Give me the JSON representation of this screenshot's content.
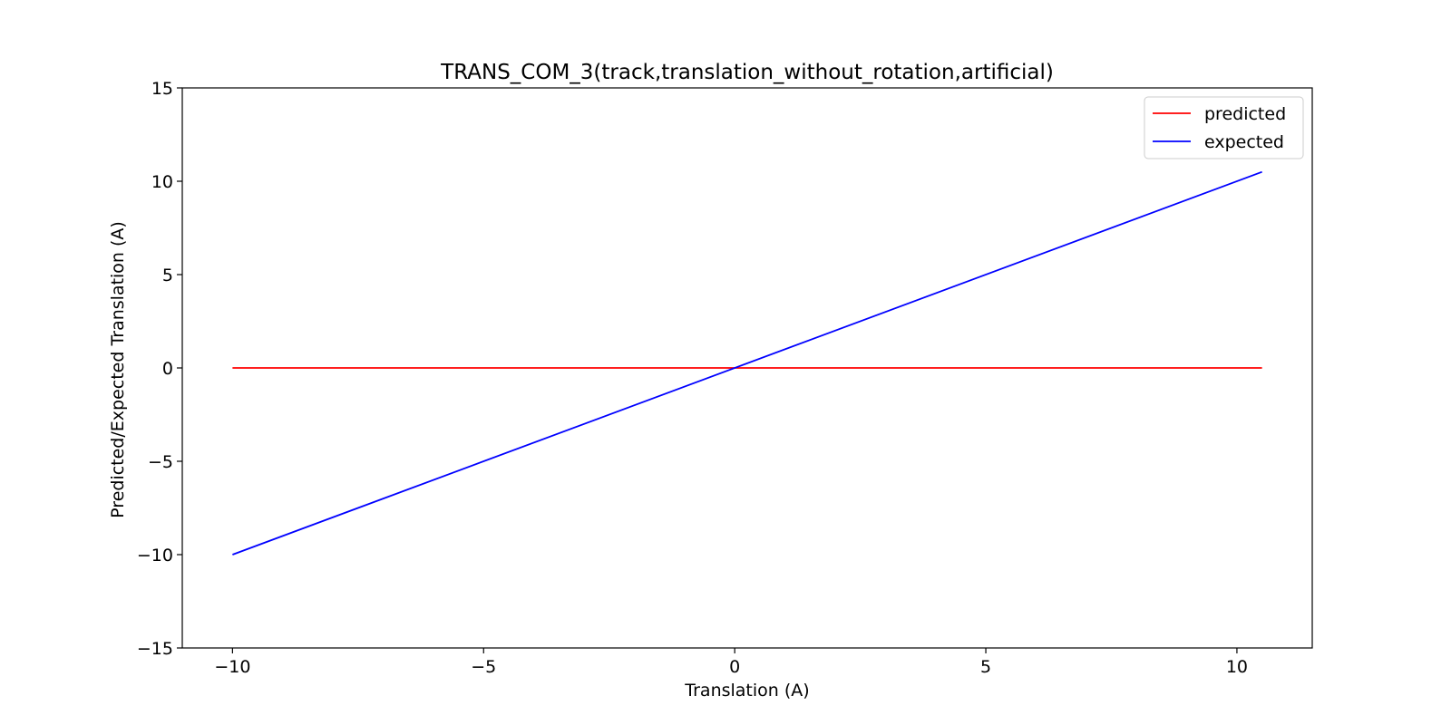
{
  "chart_data": {
    "type": "line",
    "title": "TRANS_COM_3(track,translation_without_rotation,artificial)",
    "xlabel": "Translation (A)",
    "ylabel": "Predicted/Expected Translation (A)",
    "xlim": [
      -11,
      11.5
    ],
    "ylim": [
      -15,
      15
    ],
    "xticks": [
      -10,
      -5,
      0,
      5,
      10
    ],
    "yticks": [
      -15,
      -10,
      -5,
      0,
      5,
      10,
      15
    ],
    "xtick_labels": [
      "−10",
      "−5",
      "0",
      "5",
      "10"
    ],
    "ytick_labels": [
      "−15",
      "−10",
      "−5",
      "0",
      "5",
      "10",
      "15"
    ],
    "grid": false,
    "legend_position": "top-right",
    "series": [
      {
        "name": "predicted",
        "color": "#ff0000",
        "x": [
          -10,
          10.5
        ],
        "y": [
          0,
          0
        ]
      },
      {
        "name": "expected",
        "color": "#0000ff",
        "x": [
          -10,
          10.5
        ],
        "y": [
          -10,
          10.5
        ]
      }
    ]
  }
}
